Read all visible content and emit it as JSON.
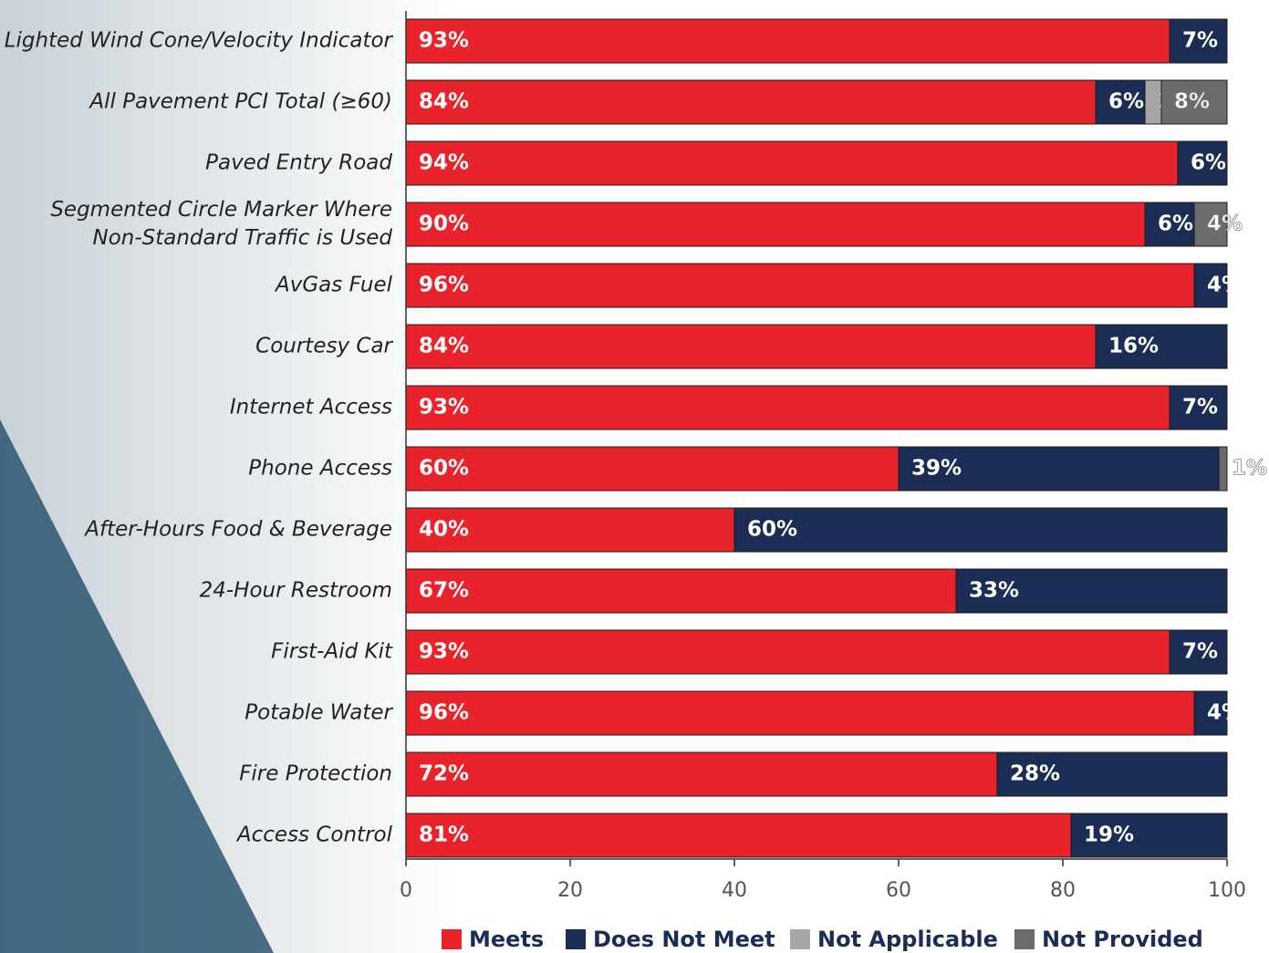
{
  "chart_data": {
    "type": "stacked-bar-horizontal",
    "categories": [
      "Lighted Wind Cone/Velocity Indicator",
      "All Pavement PCI Total (≥60)",
      "Paved Entry Road",
      "Segmented Circle Marker Where\nNon-Standard Traffic is Used",
      "AvGas Fuel",
      "Courtesy Car",
      "Internet Access",
      "Phone Access",
      "After-Hours Food & Beverage",
      "24-Hour Restroom",
      "First-Aid Kit",
      "Potable Water",
      "Fire Protection",
      "Access Control"
    ],
    "series": [
      {
        "name": "Meets",
        "color": "#e8232b",
        "values": [
          93,
          84,
          94,
          90,
          96,
          84,
          93,
          60,
          40,
          67,
          93,
          96,
          72,
          81
        ],
        "value_labels": [
          "93%",
          "84%",
          "94%",
          "90%",
          "96%",
          "84%",
          "93%",
          "60%",
          "40%",
          "67%",
          "93%",
          "96%",
          "72%",
          "81%"
        ]
      },
      {
        "name": "Does Not Meet",
        "color": "#1b2d55",
        "values": [
          7,
          6,
          6,
          6,
          4,
          16,
          7,
          39,
          60,
          33,
          7,
          4,
          28,
          19
        ],
        "value_labels": [
          "7%",
          "6%",
          "6%",
          "6%",
          "4%",
          "16%",
          "7%",
          "39%",
          "60%",
          "33%",
          "7%",
          "4%",
          "28%",
          "19%"
        ]
      },
      {
        "name": "Not Applicable",
        "color": "#a6a6a6",
        "values": [
          null,
          2,
          null,
          null,
          null,
          null,
          null,
          null,
          null,
          null,
          null,
          null,
          null,
          null
        ],
        "value_labels": [
          null,
          "2%",
          null,
          null,
          null,
          null,
          null,
          null,
          null,
          null,
          null,
          null,
          null,
          null
        ]
      },
      {
        "name": "Not Provided",
        "color": "#6b6b6b",
        "values": [
          null,
          8,
          null,
          4,
          null,
          null,
          null,
          1,
          null,
          null,
          null,
          null,
          null,
          null
        ],
        "value_labels": [
          null,
          "8%",
          null,
          "4%",
          null,
          null,
          null,
          "1%",
          null,
          null,
          null,
          null,
          null,
          null
        ]
      }
    ],
    "xlim": [
      0,
      100
    ],
    "xticks": [
      0,
      20,
      40,
      60,
      80,
      100
    ],
    "legend": "bottom"
  }
}
